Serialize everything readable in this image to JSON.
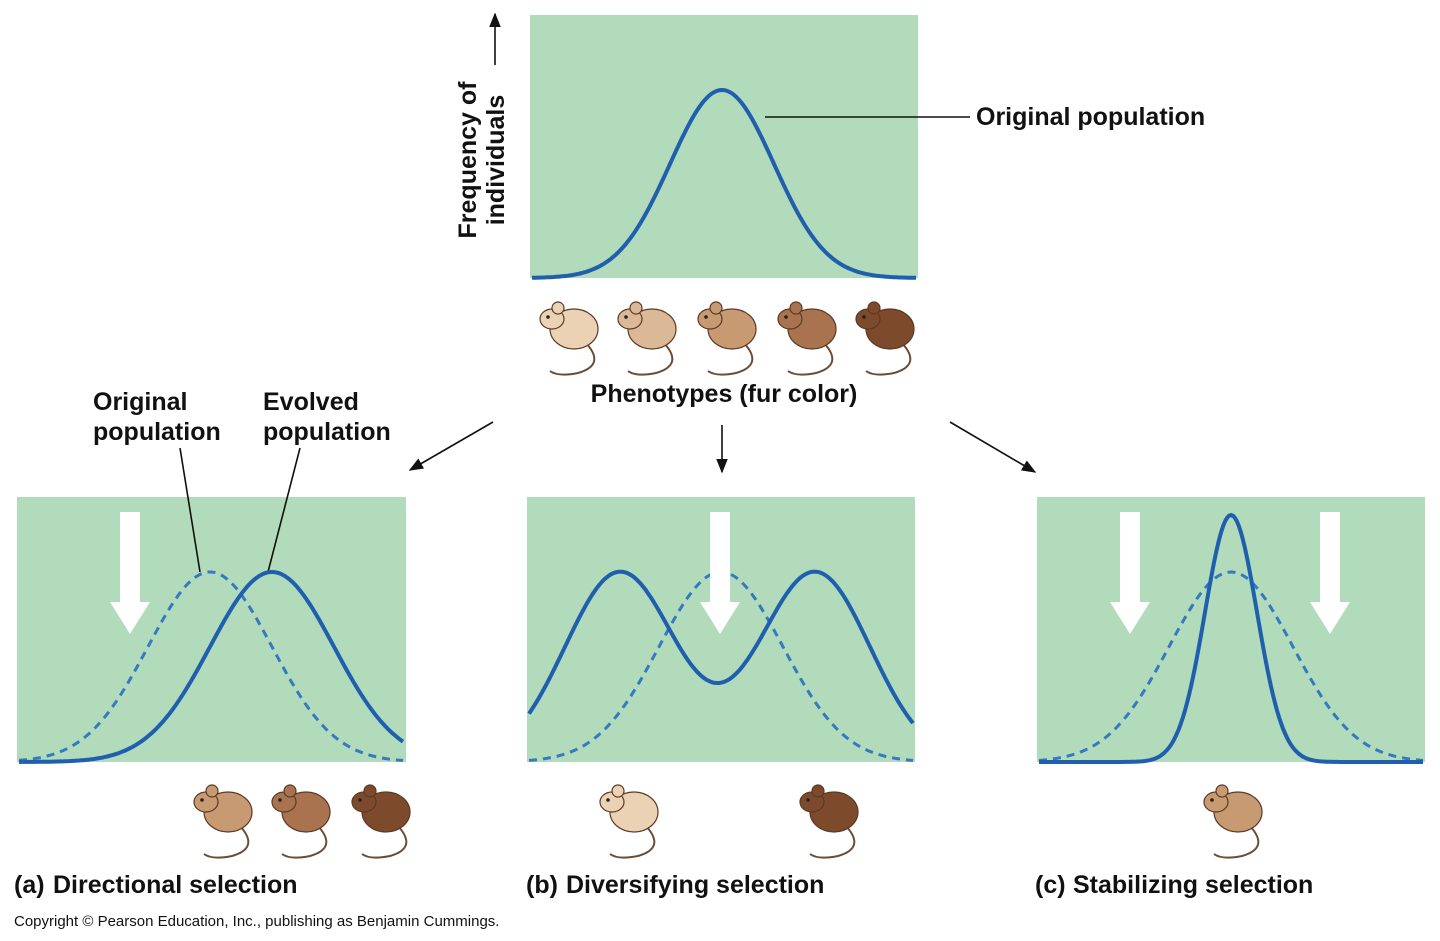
{
  "top": {
    "y_axis_label": [
      "Frequency of",
      "individuals"
    ],
    "curve_label": "Original population",
    "x_axis_label": "Phenotypes (fur color)"
  },
  "panels": [
    {
      "letter": "(a)",
      "title": "Directional selection",
      "labels": {
        "original": [
          "Original",
          "population"
        ],
        "evolved": [
          "Evolved",
          "population"
        ]
      }
    },
    {
      "letter": "(b)",
      "title": "Diversifying selection"
    },
    {
      "letter": "(c)",
      "title": "Stabilizing selection"
    }
  ],
  "copyright": "Copyright © Pearson Education, Inc., publishing as Benjamin Cummings."
}
